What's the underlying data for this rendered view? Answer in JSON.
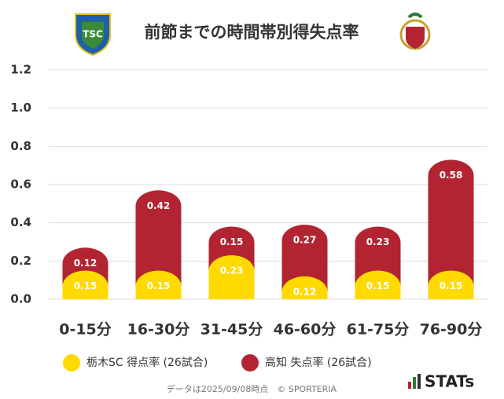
{
  "chart_data": {
    "type": "bar",
    "stacked": true,
    "title": "前節までの時間帯別得失点率",
    "categories": [
      "0-15分",
      "16-30分",
      "31-45分",
      "46-60分",
      "61-75分",
      "76-90分"
    ],
    "series": [
      {
        "name": "栃木SC 得点率 (26試合)",
        "color": "#FFDA00",
        "values": [
          0.15,
          0.15,
          0.23,
          0.12,
          0.15,
          0.15
        ]
      },
      {
        "name": "高知 失点率 (26試合)",
        "color": "#B22432",
        "values": [
          0.12,
          0.42,
          0.15,
          0.27,
          0.23,
          0.58
        ]
      }
    ],
    "ylim": [
      0,
      1.2
    ],
    "yticks": [
      {
        "value": 0,
        "label": "0.0"
      },
      0.2,
      0.4,
      0.6,
      0.8,
      {
        "value": 1,
        "label": "1.0"
      },
      1.2
    ],
    "grid": true,
    "legend": "bottom"
  },
  "footer": {
    "note": "データは2025/09/08時点　© SPORTERIA",
    "logo_text": "STATs"
  }
}
